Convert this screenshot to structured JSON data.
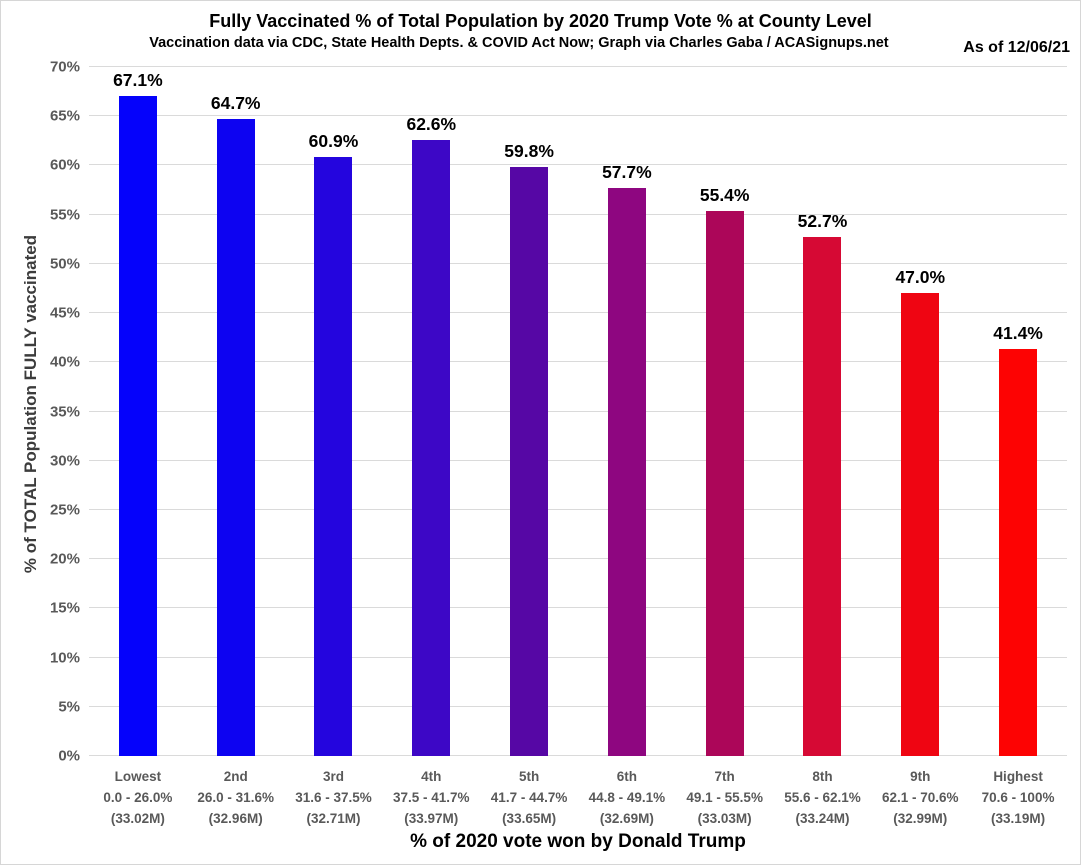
{
  "chart_data": {
    "type": "bar",
    "title": "Fully Vaccinated % of Total Population by 2020 Trump Vote % at County Level",
    "subtitle": "Vaccination data via CDC, State Health Depts. & COVID Act Now; Graph via Charles Gaba / ACASignups.net",
    "as_of": "As of 12/06/21",
    "xlabel": "% of 2020 vote won by Donald Trump",
    "ylabel": "% of TOTAL Population FULLY vaccinated",
    "ylim": [
      0,
      70
    ],
    "ytick_step": 5,
    "ytick_labels": [
      "0%",
      "5%",
      "10%",
      "15%",
      "20%",
      "25%",
      "30%",
      "35%",
      "40%",
      "45%",
      "50%",
      "55%",
      "60%",
      "65%",
      "70%"
    ],
    "grid": true,
    "legend": "none",
    "categories": [
      "Lowest",
      "2nd",
      "3rd",
      "4th",
      "5th",
      "6th",
      "7th",
      "8th",
      "9th",
      "Highest"
    ],
    "category_ranges": [
      "0.0 - 26.0%",
      "26.0 - 31.6%",
      "31.6 - 37.5%",
      "37.5 - 41.7%",
      "41.7 - 44.7%",
      "44.8 - 49.1%",
      "49.1 - 55.5%",
      "55.6 - 62.1%",
      "62.1 - 70.6%",
      "70.6 - 100%"
    ],
    "category_populations": [
      "(33.02M)",
      "(32.96M)",
      "(32.71M)",
      "(33.97M)",
      "(33.65M)",
      "(32.69M)",
      "(33.03M)",
      "(33.24M)",
      "(32.99M)",
      "(33.19M)"
    ],
    "values": [
      67.1,
      64.7,
      60.9,
      62.6,
      59.8,
      57.7,
      55.4,
      52.7,
      47.0,
      41.4
    ],
    "value_labels": [
      "67.1%",
      "64.7%",
      "60.9%",
      "62.6%",
      "59.8%",
      "57.7%",
      "55.4%",
      "52.7%",
      "47.0%",
      "41.4%"
    ],
    "bar_colors": [
      "#0502fb",
      "#0d03f1",
      "#2405de",
      "#3d07c6",
      "#5607a5",
      "#8e0680",
      "#ac0659",
      "#d60934",
      "#ef0512",
      "#fd0303"
    ]
  },
  "colors": {
    "gridline": "#dadada",
    "tick_label": "#595959",
    "category_label": "#595959",
    "axis_title": "#3c3c3c",
    "title_text": "#000000",
    "canvas_border": "#d6d6d6",
    "background": "#ffffff"
  }
}
